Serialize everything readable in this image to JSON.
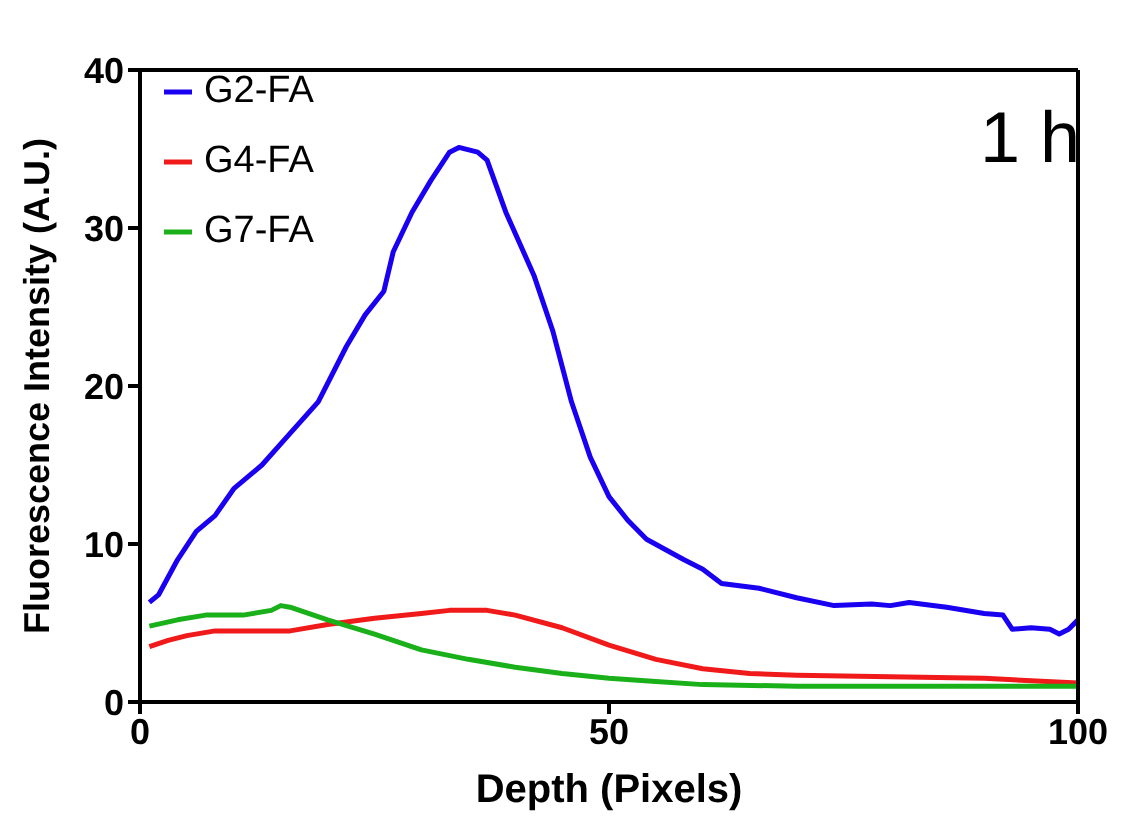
{
  "chart_data": {
    "type": "line",
    "xlabel": "Depth (Pixels)",
    "ylabel": "Fluorescence Intensity (A.U.)",
    "annotations": [
      "1 h"
    ],
    "xlim": [
      0,
      100
    ],
    "xticks": [
      0,
      50,
      100
    ],
    "ylim": [
      0,
      40
    ],
    "yticks": [
      0,
      10,
      20,
      30,
      40
    ],
    "legend": "top left",
    "marker": "none",
    "line_style": "solid",
    "series": [
      {
        "name": "G2-FA",
        "color": "#1a00f0",
        "x": [
          1,
          2,
          4,
          6,
          8,
          10,
          13,
          16,
          19,
          22,
          24,
          26,
          27,
          29,
          31,
          33,
          34,
          36,
          37,
          39,
          42,
          44,
          46,
          48,
          50,
          52,
          54,
          58,
          60,
          62,
          66,
          70,
          74,
          78,
          80,
          82,
          86,
          90,
          92,
          93,
          95,
          97,
          98,
          99,
          100
        ],
        "values": [
          6.3,
          6.8,
          9,
          10.8,
          11.8,
          13.5,
          15,
          17,
          19,
          22.5,
          24.5,
          26,
          28.5,
          31,
          33,
          34.8,
          35.1,
          34.8,
          34.3,
          31,
          27,
          23.5,
          19,
          15.5,
          13,
          11.5,
          10.3,
          9,
          8.4,
          7.5,
          7.2,
          6.6,
          6.1,
          6.2,
          6.1,
          6.3,
          6,
          5.6,
          5.5,
          4.6,
          4.7,
          4.6,
          4.3,
          4.6,
          5.2
        ]
      },
      {
        "name": "G4-FA",
        "color": "#f01a1a",
        "x": [
          1,
          3,
          5,
          8,
          12,
          16,
          20,
          25,
          30,
          33,
          37,
          40,
          45,
          50,
          55,
          60,
          65,
          70,
          80,
          90,
          100
        ],
        "values": [
          3.5,
          3.9,
          4.2,
          4.5,
          4.5,
          4.5,
          4.9,
          5.3,
          5.6,
          5.8,
          5.8,
          5.5,
          4.7,
          3.6,
          2.7,
          2.1,
          1.8,
          1.7,
          1.6,
          1.5,
          1.2
        ]
      },
      {
        "name": "G7-FA",
        "color": "#1ab01a",
        "x": [
          1,
          4,
          7,
          11,
          14,
          15,
          16,
          20,
          25,
          30,
          35,
          40,
          45,
          50,
          55,
          60,
          70,
          80,
          100
        ],
        "values": [
          4.8,
          5.2,
          5.5,
          5.5,
          5.8,
          6.1,
          6,
          5.2,
          4.3,
          3.3,
          2.7,
          2.2,
          1.8,
          1.5,
          1.3,
          1.1,
          1,
          1,
          1
        ]
      }
    ]
  }
}
